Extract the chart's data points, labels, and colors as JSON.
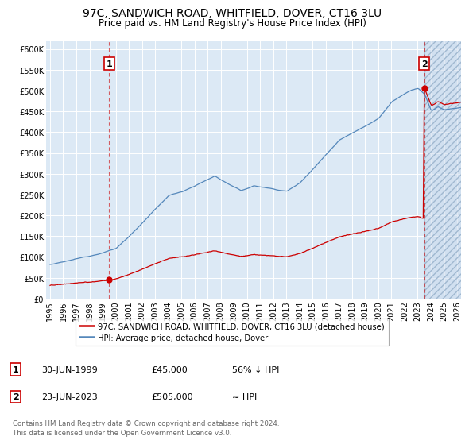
{
  "title": "97C, SANDWICH ROAD, WHITFIELD, DOVER, CT16 3LU",
  "subtitle": "Price paid vs. HM Land Registry's House Price Index (HPI)",
  "background_color": "#dce9f5",
  "sale1_year": 1999.5,
  "sale1_price": 45000,
  "sale2_year": 2023.5,
  "sale2_price": 505000,
  "ylim_min": 0,
  "ylim_max": 620000,
  "ytick_step": 50000,
  "xmin": 1994.7,
  "xmax": 2026.3,
  "legend_line1": "97C, SANDWICH ROAD, WHITFIELD, DOVER, CT16 3LU (detached house)",
  "legend_line2": "HPI: Average price, detached house, Dover",
  "ann1_date": "30-JUN-1999",
  "ann1_price": "£45,000",
  "ann1_note": "56% ↓ HPI",
  "ann2_date": "23-JUN-2023",
  "ann2_price": "£505,000",
  "ann2_note": "≈ HPI",
  "footer": "Contains HM Land Registry data © Crown copyright and database right 2024.\nThis data is licensed under the Open Government Licence v3.0.",
  "red_color": "#cc0000",
  "blue_color": "#5588bb",
  "grid_color": "#ffffff",
  "hatch_region_start": 2023.5,
  "hatch_region_end": 2026.3
}
